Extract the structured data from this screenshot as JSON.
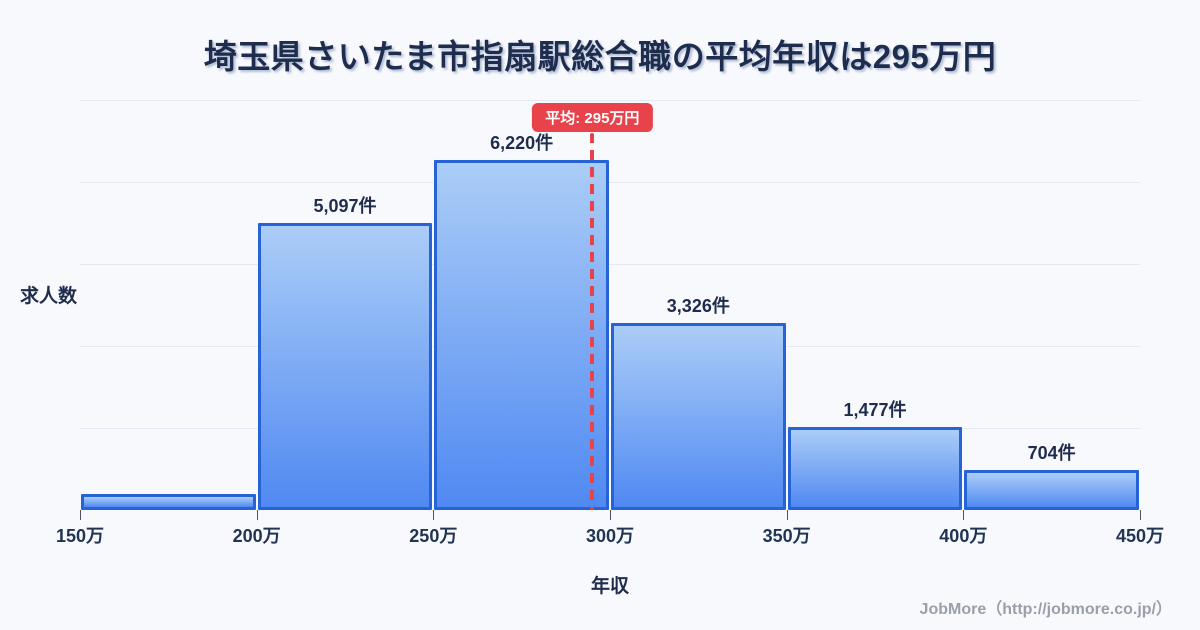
{
  "page": {
    "background": "#f8f9fc"
  },
  "title": {
    "text": "埼玉県さいたま市指扇駅総合職の平均年収は295万円"
  },
  "average_marker": {
    "label": "平均: 295万円",
    "value_man": 295
  },
  "axes": {
    "y_label": "求人数",
    "x_label": "年収",
    "x_ticks": [
      "150万",
      "200万",
      "250万",
      "300万",
      "350万",
      "400万",
      "450万"
    ]
  },
  "footer": {
    "text": "JobMore（http://jobmore.co.jp/）"
  },
  "chart_data": {
    "type": "bar",
    "title": "埼玉県さいたま市指扇駅総合職の平均年収は295万円",
    "xlabel": "年収",
    "ylabel": "求人数",
    "x_range_man": [
      150,
      450
    ],
    "bin_edges_man": [
      150,
      200,
      250,
      300,
      350,
      400,
      450
    ],
    "categories": [
      "150万-200万",
      "200万-250万",
      "250万-300万",
      "300万-350万",
      "350万-400万",
      "400万-450万"
    ],
    "values": [
      null,
      5097,
      6220,
      3326,
      1477,
      704
    ],
    "bar_labels": [
      "",
      "5,097件",
      "6,220件",
      "3,326件",
      "1,477件",
      "704件"
    ],
    "first_bar_render_fraction": 0.046,
    "average_line": {
      "value_man": 295,
      "label": "平均: 295万円"
    },
    "legend": "none",
    "grid": "horizontal",
    "colors": {
      "bar_fill_top": "#abcdf7",
      "bar_fill_bottom": "#5089f2",
      "bar_border": "#2563d6",
      "average_line": "#e8434a",
      "gridline": "#e4e9f3",
      "text": "#1f2c4e",
      "footer_text": "#9aa0a9"
    }
  }
}
